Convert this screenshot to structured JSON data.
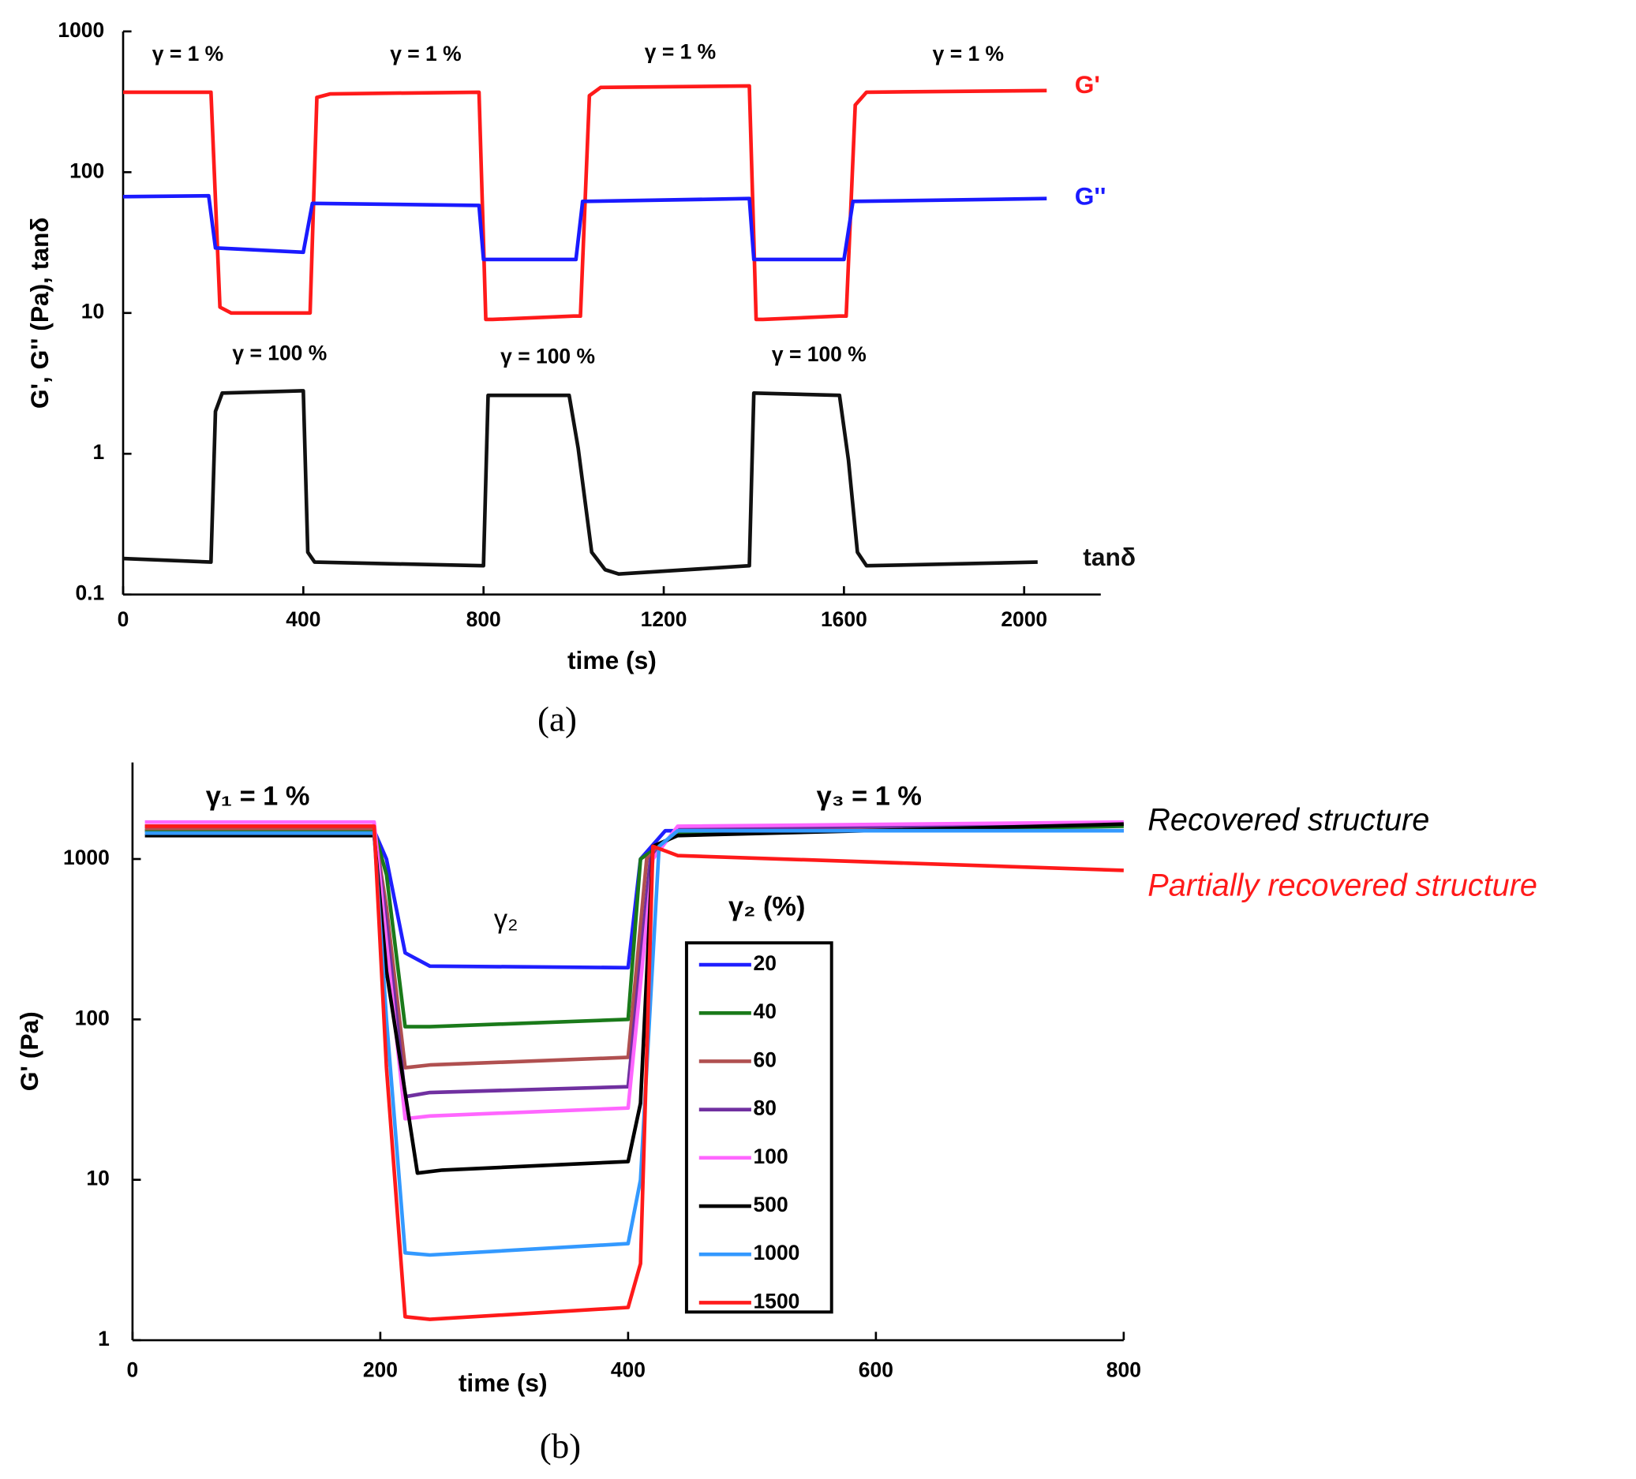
{
  "chart_data": [
    {
      "type": "line",
      "log_y": true,
      "legend": "direct",
      "caption": "(a)",
      "xlabel": "time (s)",
      "ylabel": "G', G'' (Pa), tanδ",
      "xlim": [
        0,
        2170
      ],
      "xticks": [
        0,
        400,
        800,
        1200,
        1600,
        2000
      ],
      "ylim": [
        0.1,
        1000
      ],
      "yticks": [
        0.1,
        1,
        10,
        100,
        1000
      ],
      "annotations": [
        {
          "text": "γ  = 1 %",
          "color": "#000000"
        },
        {
          "text": "γ  = 1 %",
          "color": "#000000"
        },
        {
          "text": "γ  = 1 %",
          "color": "#000000"
        },
        {
          "text": "γ  = 1 %",
          "color": "#000000"
        },
        {
          "text": "γ  = 100 %",
          "color": "#000000"
        },
        {
          "text": "γ  = 100 %",
          "color": "#000000"
        },
        {
          "text": "γ  = 100 %",
          "color": "#000000"
        }
      ],
      "series": [
        {
          "name": "G'",
          "color": "#ff1a1a",
          "x": [
            0,
            195,
            215,
            240,
            400,
            415,
            430,
            460,
            790,
            805,
            820,
            1000,
            1015,
            1035,
            1060,
            1390,
            1405,
            1420,
            1590,
            1605,
            1625,
            1650,
            2050
          ],
          "values": [
            370,
            370,
            11,
            10,
            10,
            10,
            340,
            360,
            370,
            9,
            9,
            9.5,
            9.5,
            350,
            400,
            410,
            9,
            9,
            9.5,
            9.5,
            300,
            370,
            380
          ]
        },
        {
          "name": "G''",
          "color": "#1a1aff",
          "x": [
            0,
            190,
            205,
            400,
            420,
            790,
            800,
            1005,
            1020,
            1390,
            1400,
            1600,
            1620,
            2050
          ],
          "values": [
            67,
            68,
            29,
            27,
            60,
            58,
            24,
            24,
            62,
            65,
            24,
            24,
            62,
            65
          ]
        },
        {
          "name": "tanδ",
          "color": "#111111",
          "x": [
            0,
            195,
            205,
            220,
            400,
            410,
            425,
            800,
            810,
            990,
            1010,
            1040,
            1070,
            1100,
            1390,
            1400,
            1590,
            1610,
            1630,
            1650,
            2030
          ],
          "values": [
            0.18,
            0.17,
            2,
            2.7,
            2.8,
            0.2,
            0.17,
            0.16,
            2.6,
            2.6,
            1.1,
            0.2,
            0.15,
            0.14,
            0.16,
            2.7,
            2.6,
            0.9,
            0.2,
            0.16,
            0.17
          ]
        }
      ]
    },
    {
      "type": "line",
      "log_y": true,
      "legend": "box",
      "legend_title": "γ₂ (%)",
      "caption": "(b)",
      "xlabel": "time (s)",
      "ylabel": "G' (Pa)",
      "xlim": [
        0,
        800
      ],
      "xticks": [
        0,
        200,
        400,
        600,
        800
      ],
      "ylim": [
        1,
        4000
      ],
      "yticks": [
        1,
        10,
        100,
        1000
      ],
      "annotations": [
        {
          "text": "γ₁ = 1 %",
          "color": "#000000"
        },
        {
          "text": "γ₃ = 1 %",
          "color": "#000000"
        },
        {
          "text": "γ₂",
          "color": "#000000"
        },
        {
          "text": "Recovered structure",
          "color": "#000000"
        },
        {
          "text": "Partially  recovered structure",
          "color": "#ff1a1a"
        }
      ],
      "series": [
        {
          "name": "20",
          "color": "#1f1fff",
          "x": [
            10,
            195,
            205,
            220,
            240,
            400,
            410,
            430,
            800
          ],
          "values": [
            1500,
            1500,
            1000,
            260,
            215,
            210,
            1000,
            1500,
            1500
          ]
        },
        {
          "name": "40",
          "color": "#1a7a1a",
          "x": [
            10,
            195,
            205,
            220,
            240,
            400,
            410,
            440,
            800
          ],
          "values": [
            1500,
            1500,
            800,
            90,
            90,
            100,
            1000,
            1450,
            1600
          ]
        },
        {
          "name": "60",
          "color": "#b05050",
          "x": [
            10,
            195,
            205,
            220,
            240,
            400,
            415,
            440,
            800
          ],
          "values": [
            1550,
            1550,
            500,
            50,
            52,
            58,
            1000,
            1500,
            1650
          ]
        },
        {
          "name": "80",
          "color": "#7030a0",
          "x": [
            10,
            195,
            205,
            220,
            240,
            400,
            418,
            440,
            800
          ],
          "values": [
            1600,
            1600,
            400,
            33,
            35,
            38,
            1000,
            1550,
            1650
          ]
        },
        {
          "name": "100",
          "color": "#ff66ff",
          "x": [
            10,
            195,
            205,
            220,
            240,
            400,
            420,
            440,
            800
          ],
          "values": [
            1700,
            1700,
            300,
            24,
            25,
            28,
            1000,
            1600,
            1700
          ]
        },
        {
          "name": "500",
          "color": "#000000",
          "x": [
            10,
            195,
            205,
            230,
            250,
            400,
            410,
            420,
            440,
            800
          ],
          "values": [
            1400,
            1400,
            200,
            11,
            11.5,
            13,
            30,
            1200,
            1400,
            1650
          ]
        },
        {
          "name": "1000",
          "color": "#3399ff",
          "x": [
            10,
            195,
            205,
            220,
            240,
            400,
            410,
            425,
            440,
            800
          ],
          "values": [
            1450,
            1450,
            100,
            3.5,
            3.4,
            4,
            10,
            1200,
            1500,
            1500
          ]
        },
        {
          "name": "1500",
          "color": "#ff1a1a",
          "x": [
            10,
            195,
            205,
            220,
            240,
            400,
            410,
            420,
            440,
            800
          ],
          "values": [
            1600,
            1600,
            50,
            1.4,
            1.35,
            1.6,
            3,
            1200,
            1050,
            850
          ]
        }
      ]
    }
  ]
}
